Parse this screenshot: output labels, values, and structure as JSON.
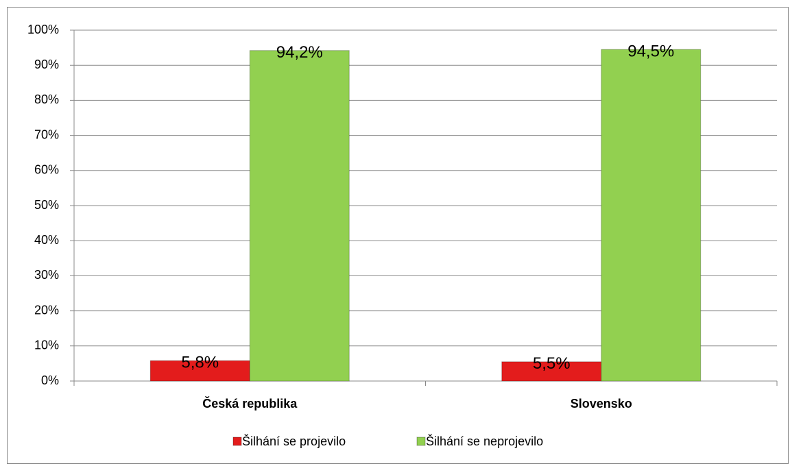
{
  "chart_data": {
    "type": "bar",
    "categories": [
      "Česká republika",
      "Slovensko"
    ],
    "series": [
      {
        "name": "Šilhání se projevilo",
        "color": "#e31c1c",
        "values": [
          5.8,
          5.5
        ],
        "value_labels": [
          "5,8%",
          "5,5%"
        ]
      },
      {
        "name": "Šilhání se neprojevilo",
        "color": "#92d050",
        "values": [
          94.2,
          94.5
        ],
        "value_labels": [
          "94,2%",
          "94,5%"
        ]
      }
    ],
    "ylim": [
      0,
      100
    ],
    "yticks": [
      {
        "value": 0,
        "label": "0%"
      },
      {
        "value": 10,
        "label": "10%"
      },
      {
        "value": 20,
        "label": "20%"
      },
      {
        "value": 30,
        "label": "30%"
      },
      {
        "value": 40,
        "label": "40%"
      },
      {
        "value": 50,
        "label": "50%"
      },
      {
        "value": 60,
        "label": "60%"
      },
      {
        "value": 70,
        "label": "70%"
      },
      {
        "value": 80,
        "label": "80%"
      },
      {
        "value": 90,
        "label": "90%"
      },
      {
        "value": 100,
        "label": "100%"
      }
    ],
    "grid": true,
    "legend": "bottom"
  }
}
